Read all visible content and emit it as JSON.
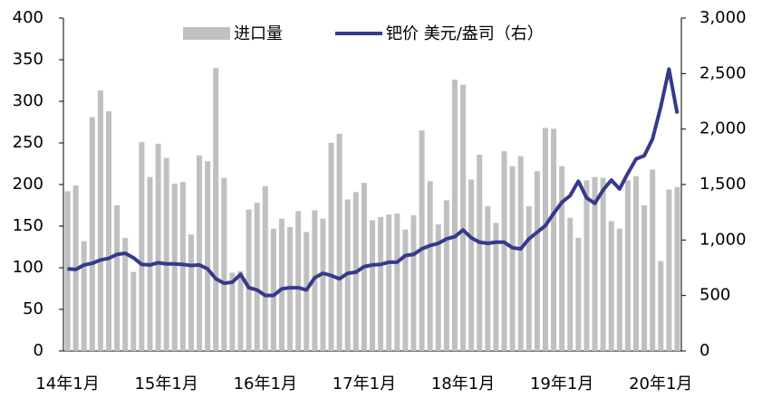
{
  "chart_data": {
    "type": "bar_line",
    "categories": [
      "14年1月",
      null,
      null,
      null,
      null,
      null,
      null,
      null,
      null,
      null,
      null,
      null,
      "15年1月",
      null,
      null,
      null,
      null,
      null,
      null,
      null,
      null,
      null,
      null,
      null,
      "16年1月",
      null,
      null,
      null,
      null,
      null,
      null,
      null,
      null,
      null,
      null,
      null,
      "17年1月",
      null,
      null,
      null,
      null,
      null,
      null,
      null,
      null,
      null,
      null,
      null,
      "18年1月",
      null,
      null,
      null,
      null,
      null,
      null,
      null,
      null,
      null,
      null,
      null,
      "19年1月",
      null,
      null,
      null,
      null,
      null,
      null,
      null,
      null,
      null,
      null,
      null,
      "20年1月",
      null,
      null
    ],
    "series": [
      {
        "name": "进口量",
        "color": "#c0c0c0",
        "kind": "bar",
        "values": [
          192,
          199,
          132,
          281,
          313,
          288,
          175,
          136,
          95,
          251,
          209,
          249,
          232,
          201,
          203,
          140,
          235,
          228,
          340,
          208,
          94,
          96,
          170,
          178,
          198,
          147,
          159,
          149,
          168,
          143,
          169,
          159,
          250,
          261,
          182,
          191,
          202,
          157,
          161,
          164,
          165,
          146,
          163,
          265,
          204,
          152,
          181,
          326,
          320,
          206,
          236,
          174,
          154,
          240,
          222,
          234,
          174,
          216,
          268,
          267,
          222,
          160,
          136,
          205,
          209,
          208,
          156,
          147,
          205,
          210,
          175,
          218,
          108,
          194,
          197
        ]
      },
      {
        "name": "钯价 美元/盎司（右）",
        "color": "#363a8c",
        "kind": "line",
        "axis": "y2",
        "values": [
          740,
          735,
          775,
          790,
          820,
          835,
          870,
          880,
          840,
          780,
          775,
          795,
          785,
          785,
          780,
          770,
          775,
          740,
          650,
          610,
          620,
          690,
          570,
          550,
          500,
          500,
          560,
          570,
          570,
          550,
          660,
          700,
          680,
          650,
          700,
          710,
          760,
          775,
          780,
          800,
          800,
          860,
          870,
          920,
          950,
          970,
          1010,
          1030,
          1090,
          1020,
          980,
          970,
          980,
          980,
          930,
          920,
          1010,
          1070,
          1130,
          1240,
          1340,
          1400,
          1530,
          1380,
          1330,
          1450,
          1540,
          1460,
          1600,
          1730,
          1760,
          1910,
          2200,
          2540,
          2140
        ]
      }
    ],
    "ylim": [
      0,
      400
    ],
    "yticks": [
      0,
      50,
      100,
      150,
      200,
      250,
      300,
      350,
      400
    ],
    "y2lim": [
      0,
      3000
    ],
    "y2ticks": [
      0,
      500,
      {
        "value": 1000,
        "label": "1,000"
      },
      {
        "value": 1500,
        "label": "1,500"
      },
      {
        "value": 2000,
        "label": "2,000"
      },
      {
        "value": 2500,
        "label": "2,500"
      },
      {
        "value": 3000,
        "label": "3,000"
      }
    ],
    "legend": "top"
  }
}
